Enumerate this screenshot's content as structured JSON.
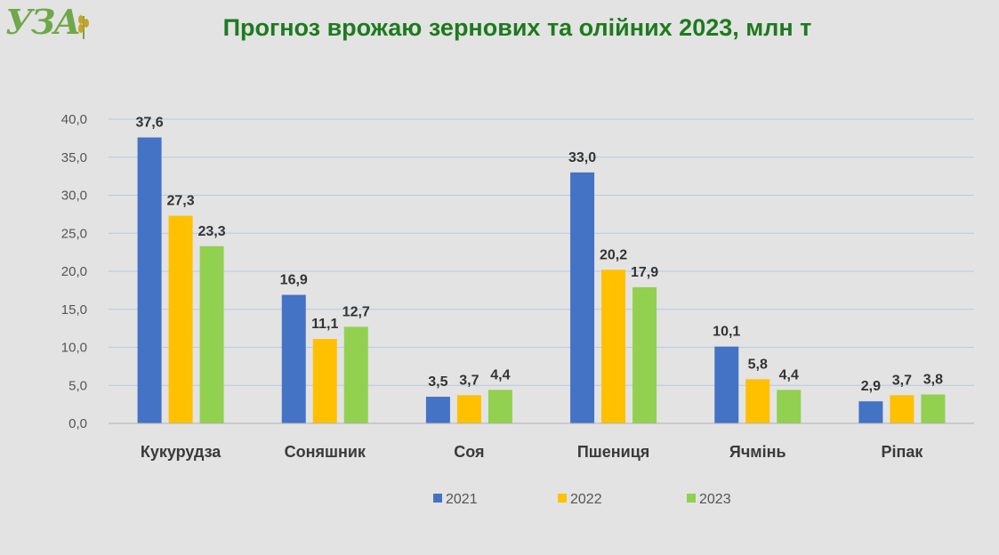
{
  "logo": {
    "text": "УЗА"
  },
  "chart_data": {
    "type": "bar",
    "title": "Прогноз врожаю зернових та олійних 2023, млн т",
    "categories": [
      "Кукурудза",
      "Соняшник",
      "Соя",
      "Пшениця",
      "Ячмінь",
      "Ріпак"
    ],
    "series": [
      {
        "name": "2021",
        "color": "#4472c4",
        "values": [
          37.6,
          16.9,
          3.5,
          33.0,
          10.1,
          2.9
        ]
      },
      {
        "name": "2022",
        "color": "#ffc000",
        "values": [
          27.3,
          11.1,
          3.7,
          20.2,
          5.8,
          3.7
        ]
      },
      {
        "name": "2023",
        "color": "#92d050",
        "values": [
          23.3,
          12.7,
          4.4,
          17.9,
          4.4,
          3.8
        ]
      }
    ],
    "ylim": [
      0,
      40
    ],
    "yticks": [
      "0,0",
      "5,0",
      "10,0",
      "15,0",
      "20,0",
      "25,0",
      "30,0",
      "35,0",
      "40,0"
    ],
    "grid": true,
    "legend_position": "bottom"
  }
}
